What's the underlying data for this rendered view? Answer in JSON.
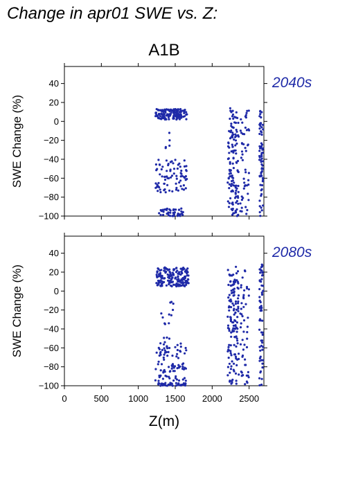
{
  "suptitle": "Change in apr01 SWE vs. Z:",
  "scenario": "A1B",
  "chart_data": [
    {
      "type": "scatter",
      "period_label": "2040s",
      "xlabel": "Z(m)",
      "ylabel": "SWE Change (%)",
      "xlim": [
        0,
        2700
      ],
      "ylim": [
        -100,
        58
      ],
      "xticks": [
        0,
        500,
        1000,
        1500,
        2000,
        2500
      ],
      "yticks": [
        -100,
        -80,
        -60,
        -40,
        -20,
        0,
        20,
        40
      ],
      "ytick_labels": [
        "−100",
        "−80",
        "−60",
        "−40",
        "−20",
        "0",
        "20",
        "40"
      ],
      "xtick_labels": [
        "0",
        "500",
        "1000",
        "1500",
        "2000",
        "2500"
      ],
      "show_xticklabels": false,
      "grid": false,
      "marker_color": "#1f2aa8",
      "clusters": [
        {
          "x": [
            1230,
            1660
          ],
          "y": [
            2,
            13
          ],
          "n": 150
        },
        {
          "x": [
            1230,
            1660
          ],
          "y": [
            -75,
            -40
          ],
          "n": 80
        },
        {
          "x": [
            1350,
            1450
          ],
          "y": [
            -40,
            -10
          ],
          "n": 5
        },
        {
          "x": [
            1280,
            1620
          ],
          "y": [
            -100,
            -92
          ],
          "n": 45
        },
        {
          "x": [
            2210,
            2280
          ],
          "y": [
            -100,
            15
          ],
          "n": 60
        },
        {
          "x": [
            2280,
            2360
          ],
          "y": [
            -100,
            17
          ],
          "n": 70
        },
        {
          "x": [
            2380,
            2500
          ],
          "y": [
            -100,
            16
          ],
          "n": 50
        },
        {
          "x": [
            2640,
            2690
          ],
          "y": [
            -100,
            14
          ],
          "n": 70
        }
      ]
    },
    {
      "type": "scatter",
      "period_label": "2080s",
      "xlabel": "Z(m)",
      "ylabel": "SWE Change (%)",
      "xlim": [
        0,
        2700
      ],
      "ylim": [
        -100,
        58
      ],
      "xticks": [
        0,
        500,
        1000,
        1500,
        2000,
        2500
      ],
      "yticks": [
        -100,
        -80,
        -60,
        -40,
        -20,
        0,
        20,
        40
      ],
      "ytick_labels": [
        "−100",
        "−80",
        "−60",
        "−40",
        "−20",
        "0",
        "20",
        "40"
      ],
      "xtick_labels": [
        "0",
        "500",
        "1000",
        "1500",
        "2000",
        "2500"
      ],
      "show_xticklabels": true,
      "grid": false,
      "marker_color": "#1f2aa8",
      "clusters": [
        {
          "x": [
            1240,
            1680
          ],
          "y": [
            5,
            25
          ],
          "n": 180
        },
        {
          "x": [
            1230,
            1650
          ],
          "y": [
            -95,
            -55
          ],
          "n": 90
        },
        {
          "x": [
            1300,
            1480
          ],
          "y": [
            -55,
            -10
          ],
          "n": 15
        },
        {
          "x": [
            1260,
            1650
          ],
          "y": [
            -100,
            -97
          ],
          "n": 40
        },
        {
          "x": [
            2210,
            2290
          ],
          "y": [
            -100,
            24
          ],
          "n": 70
        },
        {
          "x": [
            2290,
            2360
          ],
          "y": [
            -100,
            26
          ],
          "n": 70
        },
        {
          "x": [
            2380,
            2500
          ],
          "y": [
            -100,
            22
          ],
          "n": 50
        },
        {
          "x": [
            2640,
            2690
          ],
          "y": [
            -100,
            28
          ],
          "n": 70
        }
      ]
    }
  ]
}
